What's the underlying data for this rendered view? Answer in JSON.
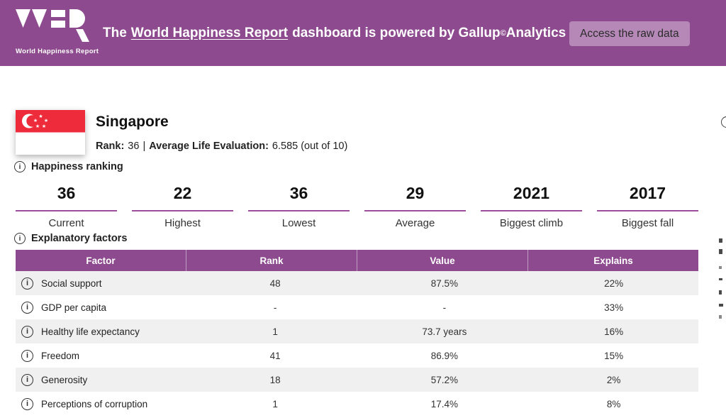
{
  "header": {
    "brand": "World Happiness Report",
    "message": {
      "prefix": "The",
      "link": "World Happiness Report",
      "middle": "dashboard is powered by Gallup",
      "sup": "©",
      "suffix": "Analytics"
    },
    "button_label": "Access the raw data"
  },
  "country": {
    "name": "Singapore",
    "rank_label": "Rank:",
    "rank_value": "36",
    "separator": "|",
    "life_eval_label": "Average Life Evaluation:",
    "life_eval_value": "6.585 (out of 10)"
  },
  "sections": {
    "ranking_title": "Happiness ranking",
    "factors_title": "Explanatory factors"
  },
  "stats": [
    {
      "value": "36",
      "label": "Current"
    },
    {
      "value": "22",
      "label": "Highest"
    },
    {
      "value": "36",
      "label": "Lowest"
    },
    {
      "value": "29",
      "label": "Average"
    },
    {
      "value": "2021",
      "label": "Biggest climb"
    },
    {
      "value": "2017",
      "label": "Biggest fall"
    }
  ],
  "table": {
    "columns": [
      "Factor",
      "Rank",
      "Value",
      "Explains"
    ],
    "rows": [
      {
        "factor": "Social support",
        "rank": "48",
        "value": "87.5%",
        "explains": "22%"
      },
      {
        "factor": "GDP per capita",
        "rank": "-",
        "value": "-",
        "explains": "33%"
      },
      {
        "factor": "Healthy life expectancy",
        "rank": "1",
        "value": "73.7 years",
        "explains": "16%"
      },
      {
        "factor": "Freedom",
        "rank": "41",
        "value": "86.9%",
        "explains": "15%"
      },
      {
        "factor": "Generosity",
        "rank": "18",
        "value": "57.2%",
        "explains": "2%"
      },
      {
        "factor": "Perceptions of corruption",
        "rank": "1",
        "value": "17.4%",
        "explains": "8%"
      }
    ]
  },
  "colors": {
    "purple": "#8d4a8e",
    "purple-light": "#b588b7",
    "underline": "#9d4e9b",
    "row-alt": "#f0f0f0",
    "flag-red": "#ee2b3a",
    "text-dark": "#222222"
  }
}
